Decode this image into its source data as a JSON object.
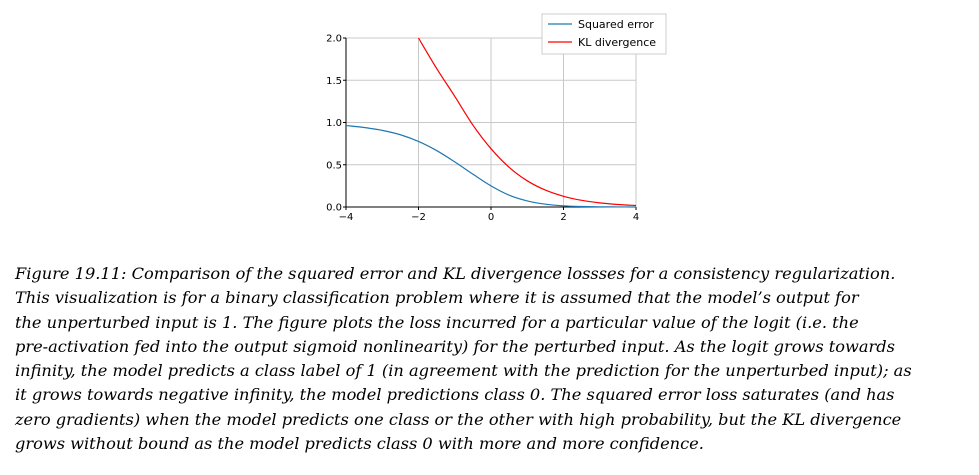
{
  "chart_data": {
    "type": "line",
    "title": "",
    "xlabel": "",
    "ylabel": "",
    "xlim": [
      -4,
      4
    ],
    "ylim": [
      0,
      2
    ],
    "x_ticks": [
      "−4",
      "−2",
      "0",
      "2",
      "4"
    ],
    "y_ticks": [
      "0.0",
      "0.5",
      "1.0",
      "1.5",
      "2.0"
    ],
    "grid": true,
    "legend_position": "top-right",
    "series": [
      {
        "name": "Squared error",
        "color": "#1f77b4",
        "x": [
          -4,
          -3.5,
          -3,
          -2.5,
          -2,
          -1.5,
          -1,
          -0.5,
          0,
          0.5,
          1,
          1.5,
          2,
          2.5,
          3,
          3.5,
          4
        ],
        "y": [
          0.964,
          0.941,
          0.907,
          0.855,
          0.776,
          0.668,
          0.534,
          0.389,
          0.25,
          0.14,
          0.072,
          0.033,
          0.014,
          0.006,
          0.002,
          0.001,
          0.0003
        ]
      },
      {
        "name": "KL divergence",
        "color": "#ff0000",
        "x": [
          -2,
          -1.5,
          -1,
          -0.5,
          0,
          0.5,
          1,
          1.5,
          2,
          2.5,
          3,
          3.5,
          4
        ],
        "y": [
          2.0,
          1.64,
          1.31,
          0.97,
          0.69,
          0.47,
          0.31,
          0.2,
          0.127,
          0.079,
          0.049,
          0.03,
          0.018
        ]
      }
    ]
  },
  "caption": {
    "lines": [
      "Figure 19.11: Comparison of the squared error and KL divergence lossses for a consistency regularization.",
      "This visualization is for a binary classification problem where it is assumed that the model’s output for",
      "the unperturbed input is 1.  The figure plots the loss incurred for a particular value of the logit (i.e. the",
      "pre-activation fed into the output sigmoid nonlinearity) for the perturbed input. As the logit grows towards",
      "infinity, the model predicts a class label of 1 (in agreement with the prediction for the unperturbed input); as",
      "it grows towards negative infinity, the model predictions class 0.  The squared error loss saturates (and has",
      "zero gradients) when the model predicts one class or the other with high probability, but the KL divergence",
      "grows without bound as the model predicts class 0 with more and more confidence."
    ]
  }
}
